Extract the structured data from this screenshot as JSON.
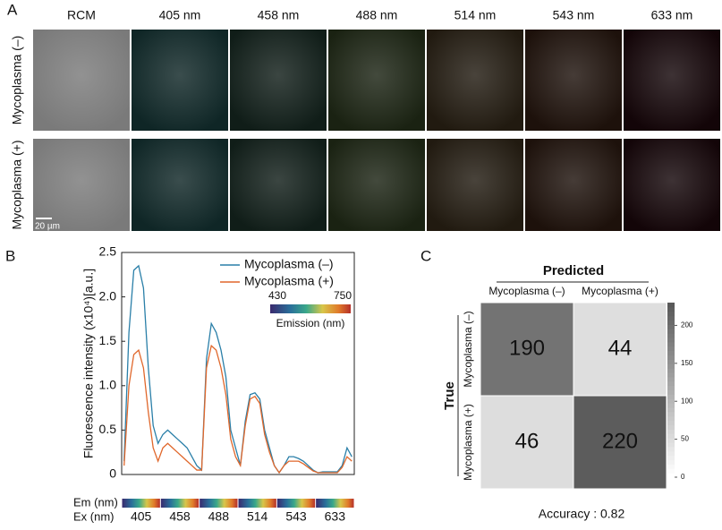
{
  "panel_labels": [
    "A",
    "B",
    "C"
  ],
  "images": {
    "columns": [
      "RCM",
      "405 nm",
      "458 nm",
      "488 nm",
      "514 nm",
      "543 nm",
      "633 nm"
    ],
    "rows": [
      "Mycoplasma (–)",
      "Mycoplasma (+)"
    ],
    "scale_bar": "20 µm"
  },
  "chart_data": [
    {
      "type": "line",
      "ylabel": "Fluorescence intensity (x10⁴)[a.u.]",
      "ylim": [
        0,
        2.5
      ],
      "yticks": [
        0,
        0.5,
        {
          "value": 1,
          "label": "1.0"
        },
        1.5,
        {
          "value": 2,
          "label": "2.0"
        },
        2.5
      ],
      "em_label": "Em (nm)",
      "ex_label": "Ex (nm)",
      "emission_colorbar": {
        "range": [
          430,
          750
        ],
        "title": "Emission (nm)"
      },
      "legend": "upper right",
      "categories": [
        null,
        null,
        null,
        null,
        "405",
        null,
        null,
        null,
        null,
        null,
        null,
        null,
        "458",
        null,
        null,
        null,
        null,
        null,
        null,
        null,
        "488",
        null,
        null,
        null,
        null,
        null,
        null,
        null,
        "514",
        null,
        null,
        null,
        null,
        null,
        null,
        null,
        "543",
        null,
        null,
        null,
        null,
        null,
        null,
        null,
        "633",
        null,
        null,
        null
      ],
      "series": [
        {
          "name": "Mycoplasma (–)",
          "color": "#2a7fa8",
          "values": [
            0.15,
            1.6,
            2.3,
            2.35,
            2.1,
            1.2,
            0.55,
            0.35,
            0.45,
            0.5,
            0.45,
            0.4,
            0.35,
            0.3,
            0.2,
            0.1,
            0.05,
            1.3,
            1.7,
            1.6,
            1.4,
            1.1,
            0.5,
            0.3,
            0.1,
            0.6,
            0.9,
            0.92,
            0.85,
            0.5,
            0.3,
            0.1,
            0.02,
            0.1,
            0.2,
            0.2,
            0.18,
            0.15,
            0.1,
            0.05,
            0.02,
            0.03,
            0.03,
            0.03,
            0.03,
            0.1,
            0.3,
            0.2
          ]
        },
        {
          "name": "Mycoplasma (+)",
          "color": "#e0672b",
          "values": [
            0.1,
            1.0,
            1.35,
            1.4,
            1.2,
            0.7,
            0.3,
            0.15,
            0.3,
            0.35,
            0.3,
            0.25,
            0.2,
            0.15,
            0.1,
            0.05,
            0.05,
            1.2,
            1.45,
            1.4,
            1.2,
            0.9,
            0.4,
            0.2,
            0.1,
            0.55,
            0.85,
            0.88,
            0.8,
            0.45,
            0.25,
            0.1,
            0.02,
            0.1,
            0.15,
            0.15,
            0.15,
            0.12,
            0.08,
            0.04,
            0.02,
            0.02,
            0.02,
            0.02,
            0.02,
            0.08,
            0.2,
            0.15
          ]
        }
      ]
    },
    {
      "type": "heatmap",
      "x_title": "Predicted",
      "y_title": "True",
      "x_categories": [
        "Mycoplasma (–)",
        "Mycoplasma (+)"
      ],
      "y_categories": [
        "Mycoplasma (–)",
        "Mycoplasma (+)"
      ],
      "values": [
        [
          190,
          44
        ],
        [
          46,
          220
        ]
      ],
      "zlim": [
        0,
        230
      ],
      "zticks": [
        0,
        50,
        100,
        150,
        200
      ],
      "colors": [
        "#ffffff",
        "#555555"
      ],
      "annotation": "Accuracy : 0.82"
    }
  ]
}
